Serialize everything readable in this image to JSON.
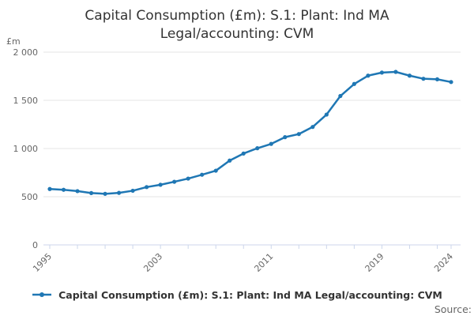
{
  "title_lines": [
    "Capital Consumption (£m): S.1: Plant: Ind MA",
    "Legal/accounting: CVM"
  ],
  "source_label": "Source:",
  "legend": {
    "label": "Capital Consumption (£m): S.1: Plant: Ind MA Legal/accounting: CVM"
  },
  "colors": {
    "line": "#1f77b4",
    "grid": "#e6e6e6",
    "axis_line": "#ccd6eb",
    "tick_text": "#666666",
    "title_text": "#333333"
  },
  "chart_data": {
    "type": "line",
    "title": "Capital Consumption (£m): S.1: Plant: Ind MA Legal/accounting: CVM",
    "xlabel": "",
    "ylabel": "£m",
    "ylim": [
      0,
      2000
    ],
    "grid": true,
    "legend_position": "bottom",
    "x": [
      1995,
      1996,
      1997,
      1998,
      1999,
      2000,
      2001,
      2002,
      2003,
      2004,
      2005,
      2006,
      2007,
      2008,
      2009,
      2010,
      2011,
      2012,
      2013,
      2014,
      2015,
      2016,
      2017,
      2018,
      2019,
      2020,
      2021,
      2022,
      2023,
      2024
    ],
    "series": [
      {
        "name": "Capital Consumption (£m): S.1: Plant: Ind MA Legal/accounting: CVM",
        "values": [
          580,
          572,
          558,
          538,
          530,
          540,
          562,
          600,
          624,
          655,
          688,
          728,
          770,
          875,
          948,
          1003,
          1048,
          1118,
          1150,
          1224,
          1352,
          1545,
          1670,
          1756,
          1788,
          1795,
          1756,
          1724,
          1718,
          1690
        ]
      }
    ],
    "y_ticks": [
      {
        "value": 0,
        "label": "0"
      },
      {
        "value": 500,
        "label": "500"
      },
      {
        "value": 1000,
        "label": "1 000"
      },
      {
        "value": 1500,
        "label": "1 500"
      },
      {
        "value": 2000,
        "label": "2 000"
      }
    ],
    "x_labeled_ticks": [
      {
        "year": 1995,
        "label": "1995"
      },
      {
        "year": 2003,
        "label": "2003"
      },
      {
        "year": 2011,
        "label": "2011"
      },
      {
        "year": 2019,
        "label": "2019"
      },
      {
        "year": 2024,
        "label": "2024"
      }
    ],
    "x_minor_tick_interval_years": 2
  }
}
